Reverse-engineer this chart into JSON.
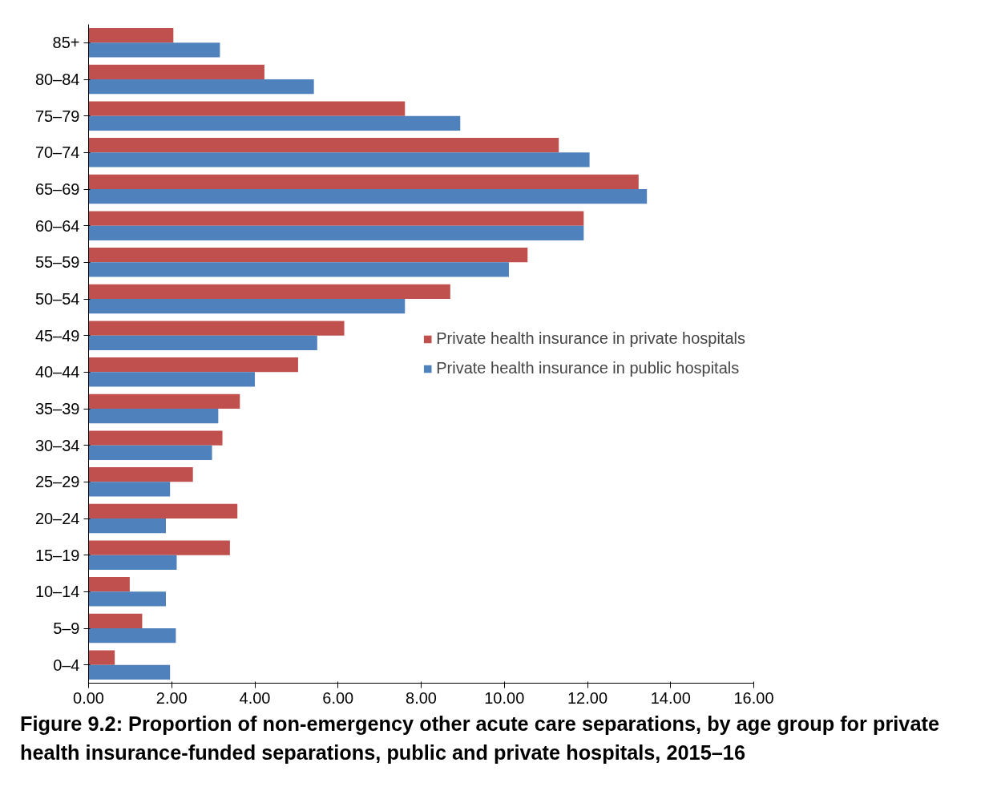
{
  "chart_data": {
    "type": "bar",
    "orientation": "horizontal",
    "title": "Figure 9.2: Proportion of non-emergency other acute care separations, by age group for private health insurance-funded separations, public and private hospitals, 2015–16",
    "categories": [
      "85+",
      "80–84",
      "75–79",
      "70–74",
      "65–69",
      "60–64",
      "55–59",
      "50–54",
      "45–49",
      "40–44",
      "35–39",
      "30–34",
      "25–29",
      "20–24",
      "15–19",
      "10–14",
      "5–9",
      "0–4"
    ],
    "series": [
      {
        "name": "Private health insurance in private hospitals",
        "color": "#c0504d",
        "values": [
          2.04,
          4.23,
          7.61,
          11.31,
          13.23,
          11.91,
          10.56,
          8.7,
          6.15,
          5.04,
          3.64,
          3.22,
          2.51,
          3.58,
          3.4,
          0.99,
          1.29,
          0.63
        ]
      },
      {
        "name": "Private health insurance in public hospitals",
        "color": "#4f81bd",
        "values": [
          3.16,
          5.42,
          8.94,
          12.05,
          13.43,
          11.91,
          10.11,
          7.61,
          5.5,
          4.0,
          3.12,
          2.97,
          1.96,
          1.86,
          2.12,
          1.86,
          2.1,
          1.96
        ]
      }
    ],
    "xlim": [
      0,
      16
    ],
    "xticks": [
      {
        "value": 0,
        "label": "0.00"
      },
      {
        "value": 2,
        "label": "2.00"
      },
      {
        "value": 4,
        "label": "4.00"
      },
      {
        "value": 6,
        "label": "6.00"
      },
      {
        "value": 8,
        "label": "8.00"
      },
      {
        "value": 10,
        "label": "10.00"
      },
      {
        "value": 12,
        "label": "12.00"
      },
      {
        "value": 14,
        "label": "14.00"
      },
      {
        "value": 16,
        "label": "16.00"
      }
    ],
    "grid": false,
    "legend": "right"
  }
}
